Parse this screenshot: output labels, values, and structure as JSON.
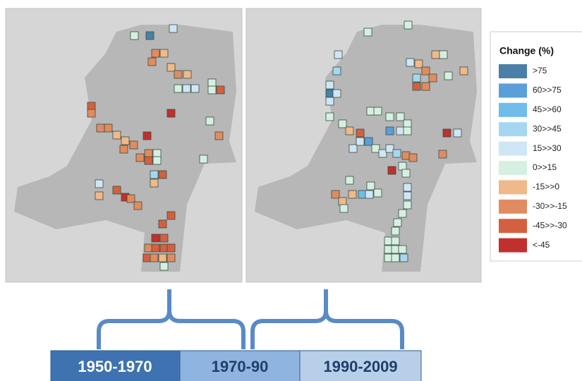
{
  "legend": {
    "title": "Change (%)",
    "items": [
      {
        "label": ">75",
        "color": "#4a7fa8"
      },
      {
        "label": "60>>75",
        "color": "#5b9fd8"
      },
      {
        "label": "45>>60",
        "color": "#6fbde8"
      },
      {
        "label": "30>>45",
        "color": "#a5d8f0"
      },
      {
        "label": "15>>30",
        "color": "#cfe6f6"
      },
      {
        "label": "0>>15",
        "color": "#d5f0e0"
      },
      {
        "label": "-15>>0",
        "color": "#f0b98a"
      },
      {
        "label": "-30>>-15",
        "color": "#e08c60"
      },
      {
        "label": "-45>>-30",
        "color": "#d4603f"
      },
      {
        "label": "<-45",
        "color": "#c0302c"
      }
    ]
  },
  "timeline": [
    "1950-1970",
    "1970-90",
    "1990-2009"
  ]
}
